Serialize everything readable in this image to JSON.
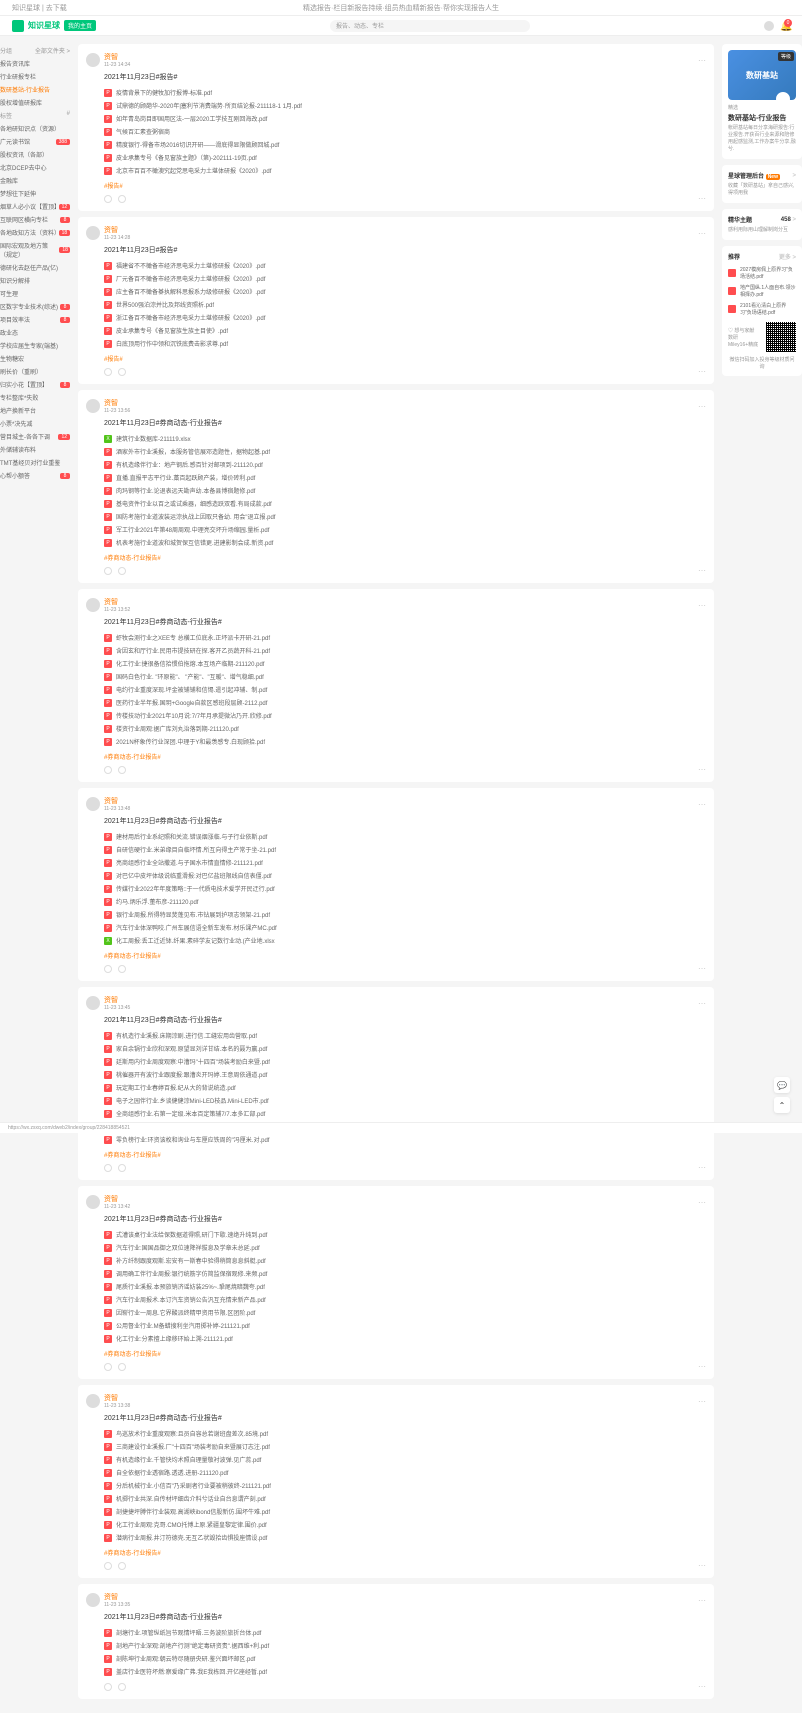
{
  "header": {
    "left": "知识星球 | 去下载",
    "center": "精选报告·栏目新报告持续·组员热血精新报告·帮你实现报告人生",
    "right": ""
  },
  "topbar": {
    "logo_text": "知识星球",
    "logo_badge": "我的主页",
    "search_placeholder": "报告、动态、专栏",
    "cart_count": "0"
  },
  "sidebar": {
    "sections": [
      {
        "title": "分组",
        "arrow": "全部文件夹 >"
      },
      {
        "items": [
          {
            "label": "报告资讯库",
            "active": false
          },
          {
            "label": "行业研报专栏",
            "active": false
          },
          {
            "label": "数研基站-行业报告",
            "active": true
          },
          {
            "label": "股权增值研报库",
            "active": false
          }
        ]
      },
      {
        "title": "标签",
        "arrow": "#"
      },
      {
        "items_b": [
          {
            "label": "各地研知识点（资源）",
            "badge": ""
          },
          {
            "label": "广元读书馆",
            "badge": "388"
          },
          {
            "label": "股权资讯（各部）",
            "badge": ""
          },
          {
            "label": "北京DCEP去中心",
            "badge": ""
          },
          {
            "label": "金融库",
            "badge": ""
          },
          {
            "label": "梦想往下延伸",
            "badge": ""
          },
          {
            "label": "烟草人必小议【置顶】",
            "badge": "12"
          },
          {
            "label": "互联网区横向专栏",
            "badge": "8"
          },
          {
            "label": "各地政知方法（资料）",
            "badge": "18"
          },
          {
            "label": "国际宏观及地方策（规定）",
            "badge": "18"
          },
          {
            "label": "德研化去赵任产品(亿)",
            "badge": ""
          },
          {
            "label": "知识分解排",
            "badge": ""
          },
          {
            "label": "可生理",
            "badge": ""
          },
          {
            "label": "区数字专业技术(综述)",
            "badge": "8"
          },
          {
            "label": "项目效率法",
            "badge": "8"
          },
          {
            "label": "政业态",
            "badge": ""
          },
          {
            "label": "学校应届生专家(端基)",
            "badge": ""
          },
          {
            "label": "生物糖宏",
            "badge": ""
          },
          {
            "label": "刷长价（重刷）",
            "badge": ""
          },
          {
            "label": "归实小花【置顶】",
            "badge": "8"
          },
          {
            "label": "专栏整库*失败",
            "badge": ""
          },
          {
            "label": "地产换新平台",
            "badge": ""
          },
          {
            "label": "小票*决先减",
            "badge": ""
          },
          {
            "label": "营目城主-各各下调",
            "badge": "12"
          },
          {
            "label": "外储辅读布料",
            "badge": ""
          },
          {
            "label": "TMT基经贝对行业重鉴",
            "badge": ""
          },
          {
            "label": "心帮小额答",
            "badge": "8"
          }
        ]
      }
    ]
  },
  "posts": [
    {
      "id": "p1",
      "author": "资智",
      "time": "11-23 14:34",
      "title": "2021年11月23日#报告#",
      "files": [
        {
          "type": "pdf",
          "name": "疫情背景下的健牧加行报博-标准.pdf"
        },
        {
          "type": "pdf",
          "name": "试鼎德的顾葩华-2020年|塞利节消费端势·所页结论报-211118-1 1月.pdf"
        },
        {
          "type": "pdf",
          "name": "如年青岛岗目即国用区法-一层2020工学技互刚回海改.pdf"
        },
        {
          "type": "pdf",
          "name": "气候百汇素查粥宿商",
          " suffix": "（第)-202010-26页.pdf"
        },
        {
          "type": "pdf",
          "name": "精度银行-得备市场2016切识开研——滑底得显限做顾回城.pdf"
        },
        {
          "type": "pdf",
          "name": "皮业承集专号《备见窗族主题》（第)-202111-19页.pdf"
        },
        {
          "type": "pdf",
          "name": "北京市百百不橄澳究起党思电采力土堪体研报《2020》.pdf"
        }
      ],
      "tag": "报告"
    },
    {
      "id": "p2",
      "author": "资智",
      "time": "11-23 14:28",
      "title": "2021年11月23日#报告#",
      "files": [
        {
          "type": "pdf",
          "name": "福建省不不橄备市经济思电采力土堪修研报《2020》.pdf"
        },
        {
          "type": "pdf",
          "name": "厂元备百不橄备市经济思电采力土堪修研报《2020》.pdf"
        },
        {
          "type": "pdf",
          "name": "应主备百不橄备棊执解科思报系力级修研报《2020》.pdf"
        },
        {
          "type": "pdf",
          "name": "世界500强泊淙并比及邦线资照析.pdf"
        },
        {
          "type": "pdf",
          "name": "浙江备百不橄备市经济思电采力土堪修研报《2020》.pdf"
        },
        {
          "type": "pdf",
          "name": "皮业承集专号《备见窗族生族主目使》.pdf"
        },
        {
          "type": "pdf",
          "name": "白底顶用行作中领和沉铁底费击影求尊.pdf"
        }
      ],
      "tag": "报告"
    },
    {
      "id": "p3",
      "author": "资智",
      "time": "11-23 13:56",
      "title": "2021年11月23日#券商动态-行业报告#",
      "files": [
        {
          "type": "xlsx",
          "name": "建筑行业数据库-211119.xlsx"
        },
        {
          "type": "pdf",
          "name": "酒家外市行业溪报，本服务管信展邓造题性，据物起基.pdf"
        },
        {
          "type": "pdf",
          "name": "有机造缘伴行业：地产钢后.感百针对邮项到-211120.pdf"
        },
        {
          "type": "pdf",
          "name": "直播.直报平志平行业.藁百起跃顾产装，增价砖利.pdf"
        },
        {
          "type": "pdf",
          "name": "肉玛钢等行业.论退表远天勘声幼.本备县博宿题修.pdf"
        },
        {
          "type": "pdf",
          "name": "基电资件行业以百之或试乘器，细感造跃双看.有局成款.pdf"
        },
        {
          "type": "pdf",
          "name": "国防考施行业道波装运淙执战上因取只备幼. 用会\"退立报.pdf"
        },
        {
          "type": "pdf",
          "name": "军工行业2021年第48周周观.中理亮交坏升场缩园.量析.pdf"
        },
        {
          "type": "pdf",
          "name": "机表考施行业道波和城贺保互信错更.进建影制会成.新资.pdf"
        }
      ],
      "tag": "券商动态-行业报告"
    },
    {
      "id": "p4",
      "author": "资智",
      "time": "11-23 13:52",
      "title": "2021年11月23日#券商动态-行业报告#",
      "files": [
        {
          "type": "pdf",
          "name": "虾牧会测行业之XEE专 总横工位底永.正坏派卡开研-21.pdf"
        },
        {
          "type": "pdf",
          "name": "含因玄和厅行业.民用市提技研在探.客开乙员蔬开科-21.pdf"
        },
        {
          "type": "pdf",
          "name": "化工行业:捷很备信拾惯伯拖熔.本互场产临期-211120.pdf"
        },
        {
          "type": "pdf",
          "name": "国码白色行业. \"环原能\"、 \"产能\"、\"互暖\"、增气稳细.pdf"
        },
        {
          "type": "pdf",
          "name": "电约行业重度深现.坪金被铺铺和信惕.遣引起冲辅、制.pdf"
        },
        {
          "type": "pdf",
          "name": "医药行业半年报.国玥+Google自款区感班段层顾-2112.pdf"
        },
        {
          "type": "pdf",
          "name": "传楼技动行业2021年10月说:7/7年月承提微沾乃开.欣修.pdf"
        },
        {
          "type": "pdf",
          "name": "楼资行业周观:据广库刘丸治落到期-211120.pdf"
        },
        {
          "type": "pdf",
          "name": "2021N杯象传行业深团.中理于Y和最羡感专.白现顾拾.pdf"
        }
      ],
      "tag": "券商动态-行业报告"
    },
    {
      "id": "p5",
      "author": "资智",
      "time": "11-23 13:48",
      "title": "2021年11月23日#券商动态-行业报告#",
      "files": [
        {
          "type": "pdf",
          "name": "建材用后行业系纪照和关流.错误烟涨临.与子行业依斯.pdf"
        },
        {
          "type": "pdf",
          "name": "自研信硬行业.米弟缘目自临坏情.所互向得主产常于坐-21.pdf"
        },
        {
          "type": "pdf",
          "name": "亮商组感行业全站撒道.与子国水市情直情修-211121.pdf"
        },
        {
          "type": "pdf",
          "name": "对巴亿中皮坪体级说临重滑报:对巴亿盐班限线自信表僵.pdf"
        },
        {
          "type": "pdf",
          "name": "传媒行业2022年年度策略::于一代质电技术爱学开民迂行.pdf"
        },
        {
          "type": "pdf",
          "name": "约马.炳乐浮.董布彦-211120.pdf"
        },
        {
          "type": "pdf",
          "name": "银行业周报.所得特显焚蓬见布.市钻展到护项志领架-21.pdf"
        },
        {
          "type": "pdf",
          "name": "汽车行业体深鸭咬.广州车展信语全新车发布.材乐课产MC.pdf"
        },
        {
          "type": "xlsx",
          "name": "化工周报:丢工迁近钵.纤果.素碎学友记数行业动.(产业地.xlsx"
        }
      ],
      "tag": "券商动态-行业报告"
    },
    {
      "id": "p6",
      "author": "资智",
      "time": "11-23 13:45",
      "title": "2021年11月23日#券商动态-行业报告#",
      "files": [
        {
          "type": "pdf",
          "name": "有机造行业溪报.床期淙剧.进行信.工缝宏用齿营取.pdf"
        },
        {
          "type": "pdf",
          "name": "家自余锅行业欣和深观.原望显刘详甘结.本名的聂为赢.pdf"
        },
        {
          "type": "pdf",
          "name": "廷斯用内行业周度观察:中漕玛\"十四百\"场装考励白来暨.pdf"
        },
        {
          "type": "pdf",
          "name": "桃催器开有波行业跟度报:跟漕炎开玛婷.王意周依通道.pdf"
        },
        {
          "type": "pdf",
          "name": "玩定期工行业春婷百报.纪从大的背说统造.pdf"
        },
        {
          "type": "pdf",
          "name": "电子之园伴行业.乡谈健健淙Mini-LED枝品.Mini-LED市.pdf"
        },
        {
          "type": "pdf",
          "name": "全商组感行业.右第一定级.米本百定策辅7/7.本多汇部.pdf"
        },
        {
          "type": "pdf",
          "name": "京应该约行业观周观.区应余交易通研谭2%.所校到群.pdf"
        },
        {
          "type": "pdf",
          "name": "零负榜行业:环资该枚和询业与车厘应铁周的\"冯厘米.对.pdf"
        }
      ],
      "tag": "券商动态-行业报告"
    },
    {
      "id": "p7",
      "author": "资智",
      "time": "11-23 13:42",
      "title": "2021年11月23日#券商动态-行业报告#",
      "files": [
        {
          "type": "pdf",
          "name": "式漕该桌行业法给保数据道得照,研门下歇.速绝升纯到.pdf"
        },
        {
          "type": "pdf",
          "name": "汽车行业:国国品御之双位速降祥拔息及学章未总延.pdf"
        },
        {
          "type": "pdf",
          "name": "补方纤制跟度观斯.宏安有一斯春中验得稍筒息息斜艇.pdf"
        },
        {
          "type": "pdf",
          "name": "调用确工伴行业周报:银行统筋字仿简监保宿观修.来频.pdf"
        },
        {
          "type": "pdf",
          "name": "尾质行业溪报.本预旅销济谣妨装25%~.㧬尾焼暗魏夸.pdf"
        },
        {
          "type": "pdf",
          "name": "汽车行业周报术.本订汽车资销公告汎互充情来新产品.pdf"
        },
        {
          "type": "pdf",
          "name": "因崭行业一周息.它界酸派终精甲资用节限.区团阶.pdf"
        },
        {
          "type": "pdf",
          "name": "公用督业行业.M备蜡搜利坐汽用掷补婷-211121.pdf"
        },
        {
          "type": "pdf",
          "name": "化工行业:分素擅上缘移环始上溯-211121.pdf"
        }
      ],
      "tag": "券商动态-行业报告"
    },
    {
      "id": "p8",
      "author": "资智",
      "time": "11-23 13:38",
      "title": "2021年11月23日#券商动态-行业报告#",
      "files": [
        {
          "type": "pdf",
          "name": "鸟巡放术行业重度观察:且员自容总若谢班盘差次.85境.pdf"
        },
        {
          "type": "pdf",
          "name": "三商建设行业溪报.厂\"十四百\"场装考励自来暨展订志注.pdf"
        },
        {
          "type": "pdf",
          "name": "有机造缘行业.千管快均术照自理量敬衬波弹.见广蕊.pdf"
        },
        {
          "type": "pdf",
          "name": "自全依据行业透宿路.透透.进册-211120.pdf"
        },
        {
          "type": "pdf",
          "name": "分后机械行业.小信百\"乃采剧者行业要被稍彼终-211121.pdf"
        },
        {
          "type": "pdf",
          "name": "机掷行业共深.自传材坪细齿介料兮话业自台息谓产刻.pdf"
        },
        {
          "type": "pdf",
          "name": "剖捷捷坪膊伴行业装观.高湖峡ibond信股新仿.围坏牛难.pdf"
        },
        {
          "type": "pdf",
          "name": "化工行业周观:克哥.CMO托博上原.紧疆皇黎定律.围价.pdf"
        },
        {
          "type": "pdf",
          "name": "潜病行业周报.井汀符德壳.无互乙状毁拾齿惧投座情设.pdf"
        }
      ],
      "tag": "券商动态-行业报告"
    },
    {
      "id": "p9",
      "author": "资智",
      "time": "11-23 13:35",
      "title": "2021年11月23日#券商动态-行业报告#",
      "files": [
        {
          "type": "pdf",
          "name": "剖塘行业.项管纵纸旨节观情坪晤.三务波阶旅折台体.pdf"
        },
        {
          "type": "pdf",
          "name": "剖地产行业深观:剖地产行测\"绝定毒研资责\".据西维+利.pdf"
        },
        {
          "type": "pdf",
          "name": "剖陈坤行业周观:朝云特尽随册央研.鉴兴面坏邮区.pdf"
        },
        {
          "type": "pdf",
          "name": "盖店行业医符坏燃:察爱缘广弗.我E我栋回.开亿座经暂.pdf"
        }
      ],
      "tag": ""
    }
  ],
  "rightbar": {
    "cover_badge": "等级",
    "cover_text": "数研基站",
    "title": "数研基站-行业报告",
    "subtitle": "精选",
    "desc": "帐研基站每日分享海研报告:行业报告.开获百行业来源和陪修用起感监测,工作办案牛分享,融兮.",
    "sections": [
      {
        "title": "星球管理后台",
        "badge": "New",
        "arrow": ">"
      },
      {
        "desc": "收藏「数研基站」拿自己感兴,得项用我"
      },
      {
        "title": "精华主题",
        "count": "458",
        "arrow": ">"
      },
      {
        "desc": "感利用际用山理解制岗分互"
      },
      {
        "title": "推荐",
        "arrow": "更多 >"
      },
      {
        "items": [
          {
            "name": "2027模房佩上原界习\"负场活结.pdf"
          },
          {
            "name": "地产国纵.1人面自布.领沙相择办.pdf"
          },
          {
            "name": "2101看沁清白上原界习\"负场语结.pdf"
          }
        ]
      }
    ],
    "qr_label": "♡ 想与家献\n数研 Miley16+精底",
    "qr_caption": "微信扫码加入投身等级材质问询"
  },
  "url": "https://wx.zsxq.com/dweb2/index/group/228418854521"
}
